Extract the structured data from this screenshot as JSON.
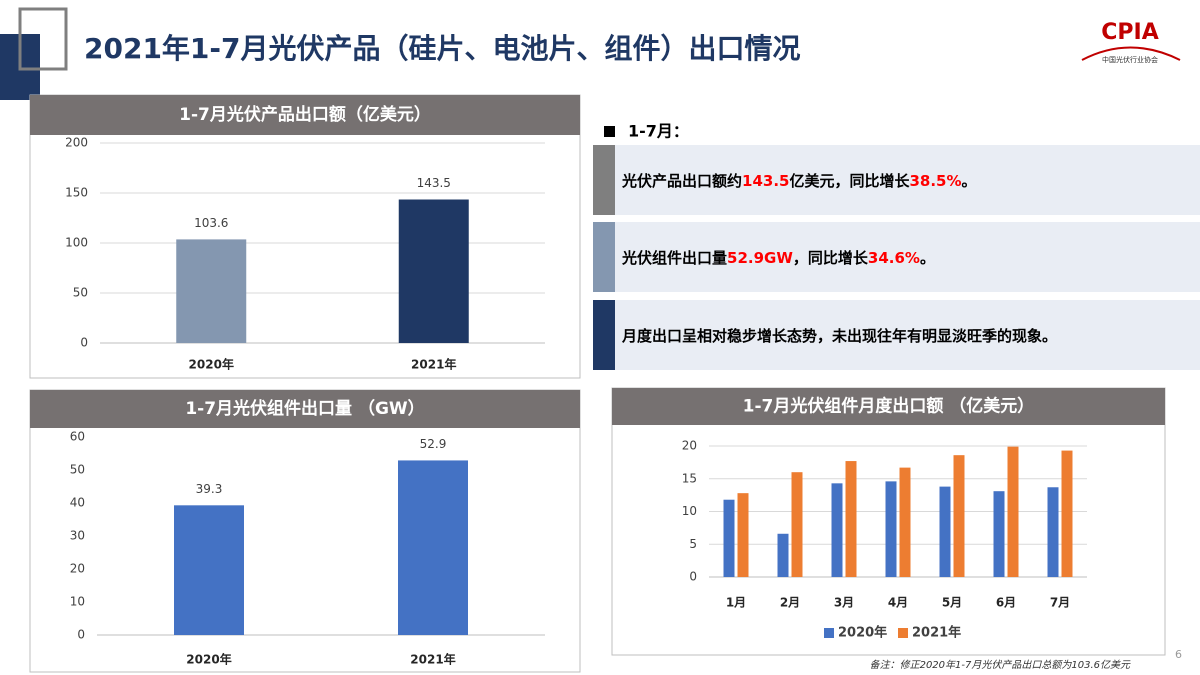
{
  "slide_title": "2021年1-7月光伏产品（硅片、电池片、组件）出口情况",
  "logo": {
    "name": "CPIA",
    "subtitle": "中国光伏行业协会"
  },
  "summary": {
    "heading": "1-7月：",
    "highlight_color": "#ff0000",
    "items": [
      {
        "color": "#7f7f7f",
        "segments": [
          {
            "text": "光伏产品出口额约",
            "highlight": false
          },
          {
            "text": "143.5",
            "highlight": true
          },
          {
            "text": "亿美元，同比增长",
            "highlight": false
          },
          {
            "text": "38.5%",
            "highlight": true
          },
          {
            "text": "。",
            "highlight": false
          }
        ]
      },
      {
        "color": "#8497b0",
        "segments": [
          {
            "text": "光伏组件出口量",
            "highlight": false
          },
          {
            "text": "52.9GW",
            "highlight": true
          },
          {
            "text": "，同比增长",
            "highlight": false
          },
          {
            "text": "34.6%",
            "highlight": true
          },
          {
            "text": "。",
            "highlight": false
          }
        ]
      },
      {
        "color": "#1f3864",
        "segments": [
          {
            "text": "月度出口呈相对稳步增长态势，未出现往年有明显淡旺季的现象。",
            "highlight": false
          }
        ]
      }
    ]
  },
  "note": "备注：修正2020年1-7月光伏产品出口总额为103.6亿美元",
  "page_number": "6",
  "chart_data": [
    {
      "type": "bar",
      "title": "1-7月光伏产品出口额（亿美元）",
      "categories": [
        "2020年",
        "2021年"
      ],
      "values": [
        103.6,
        143.5
      ],
      "colors": [
        "#8497b0",
        "#1f3864"
      ],
      "ylim": [
        0,
        200
      ],
      "yticks": [
        0,
        50,
        100,
        150,
        200
      ],
      "grid": true,
      "data_labels": true
    },
    {
      "type": "bar",
      "title": "1-7月光伏组件出口量 （GW）",
      "categories": [
        "2020年",
        "2021年"
      ],
      "values": [
        39.3,
        52.9
      ],
      "color": "#4472c4",
      "ylim": [
        0,
        60
      ],
      "yticks": [
        0,
        10,
        20,
        30,
        40,
        50,
        60
      ],
      "grid": false,
      "data_labels": true
    },
    {
      "type": "bar",
      "title": "1-7月光伏组件月度出口额 （亿美元）",
      "categories": [
        "1月",
        "2月",
        "3月",
        "4月",
        "5月",
        "6月",
        "7月"
      ],
      "series": [
        {
          "name": "2020年",
          "color": "#4472c4",
          "values": [
            11.8,
            6.6,
            14.3,
            14.6,
            13.8,
            13.1,
            13.7
          ]
        },
        {
          "name": "2021年",
          "color": "#ed7d31",
          "values": [
            12.8,
            16.0,
            17.7,
            16.7,
            18.6,
            19.9,
            19.3
          ]
        }
      ],
      "ylim": [
        0,
        20
      ],
      "yticks": [
        0,
        5,
        10,
        15,
        20
      ],
      "grid": true,
      "legend": "bottom"
    }
  ]
}
